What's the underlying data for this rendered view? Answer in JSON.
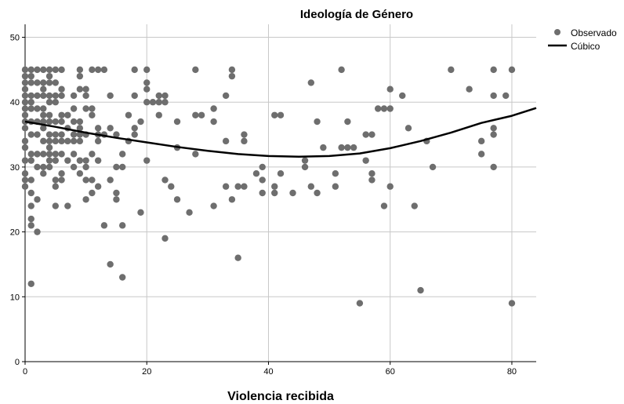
{
  "chart_data": {
    "type": "scatter",
    "title": "Ideología de Género",
    "xlabel": "Violencia recibida",
    "ylabel": "",
    "xlim": [
      0,
      84
    ],
    "ylim": [
      0,
      52
    ],
    "xticks": [
      0,
      20,
      40,
      60,
      80
    ],
    "yticks": [
      0,
      10,
      20,
      30,
      40,
      50
    ],
    "grid": true,
    "legend_position": "top-right",
    "legend": [
      {
        "label": "Observado",
        "kind": "point",
        "color": "#6e6e6e"
      },
      {
        "label": "Cúbico",
        "kind": "line",
        "color": "#000000"
      }
    ],
    "series": [
      {
        "name": "Observado",
        "type": "scatter",
        "color": "#6e6e6e",
        "points": [
          [
            0,
            45
          ],
          [
            0,
            44
          ],
          [
            0,
            43
          ],
          [
            0,
            42
          ],
          [
            0,
            41
          ],
          [
            0,
            40
          ],
          [
            0,
            39
          ],
          [
            0,
            38
          ],
          [
            0,
            37
          ],
          [
            0,
            36
          ],
          [
            0,
            34
          ],
          [
            0,
            33
          ],
          [
            0,
            31
          ],
          [
            0,
            29
          ],
          [
            0,
            28
          ],
          [
            0,
            27
          ],
          [
            1,
            45
          ],
          [
            1,
            44
          ],
          [
            1,
            43
          ],
          [
            1,
            41
          ],
          [
            1,
            40
          ],
          [
            1,
            39
          ],
          [
            1,
            37
          ],
          [
            1,
            35
          ],
          [
            1,
            32
          ],
          [
            1,
            31
          ],
          [
            1,
            28
          ],
          [
            1,
            26
          ],
          [
            1,
            24
          ],
          [
            1,
            22
          ],
          [
            1,
            21
          ],
          [
            1,
            12
          ],
          [
            2,
            45
          ],
          [
            2,
            43
          ],
          [
            2,
            41
          ],
          [
            2,
            39
          ],
          [
            2,
            37
          ],
          [
            2,
            35
          ],
          [
            2,
            32
          ],
          [
            2,
            30
          ],
          [
            2,
            25
          ],
          [
            2,
            20
          ],
          [
            3,
            45
          ],
          [
            3,
            43
          ],
          [
            3,
            42
          ],
          [
            3,
            41
          ],
          [
            3,
            39
          ],
          [
            3,
            38
          ],
          [
            3,
            37
          ],
          [
            3,
            36
          ],
          [
            3,
            34
          ],
          [
            3,
            32
          ],
          [
            3,
            30
          ],
          [
            3,
            29
          ],
          [
            4,
            45
          ],
          [
            4,
            44
          ],
          [
            4,
            43
          ],
          [
            4,
            41
          ],
          [
            4,
            40
          ],
          [
            4,
            38
          ],
          [
            4,
            37
          ],
          [
            4,
            35
          ],
          [
            4,
            34
          ],
          [
            4,
            33
          ],
          [
            4,
            32
          ],
          [
            4,
            31
          ],
          [
            4,
            30
          ],
          [
            5,
            45
          ],
          [
            5,
            43
          ],
          [
            5,
            41
          ],
          [
            5,
            40
          ],
          [
            5,
            37
          ],
          [
            5,
            35
          ],
          [
            5,
            34
          ],
          [
            5,
            32
          ],
          [
            5,
            31
          ],
          [
            5,
            28
          ],
          [
            5,
            27
          ],
          [
            5,
            24
          ],
          [
            6,
            45
          ],
          [
            6,
            42
          ],
          [
            6,
            41
          ],
          [
            6,
            38
          ],
          [
            6,
            37
          ],
          [
            6,
            35
          ],
          [
            6,
            34
          ],
          [
            6,
            32
          ],
          [
            6,
            29
          ],
          [
            6,
            28
          ],
          [
            7,
            38
          ],
          [
            7,
            36
          ],
          [
            7,
            34
          ],
          [
            7,
            31
          ],
          [
            7,
            24
          ],
          [
            8,
            41
          ],
          [
            8,
            39
          ],
          [
            8,
            37
          ],
          [
            8,
            35
          ],
          [
            8,
            34
          ],
          [
            8,
            32
          ],
          [
            8,
            30
          ],
          [
            9,
            45
          ],
          [
            9,
            44
          ],
          [
            9,
            42
          ],
          [
            9,
            37
          ],
          [
            9,
            36
          ],
          [
            9,
            35
          ],
          [
            9,
            34
          ],
          [
            9,
            31
          ],
          [
            9,
            29
          ],
          [
            10,
            42
          ],
          [
            10,
            41
          ],
          [
            10,
            39
          ],
          [
            10,
            35
          ],
          [
            10,
            31
          ],
          [
            10,
            30
          ],
          [
            10,
            28
          ],
          [
            10,
            25
          ],
          [
            11,
            45
          ],
          [
            11,
            39
          ],
          [
            11,
            38
          ],
          [
            11,
            32
          ],
          [
            11,
            28
          ],
          [
            11,
            26
          ],
          [
            12,
            45
          ],
          [
            12,
            36
          ],
          [
            12,
            35
          ],
          [
            12,
            34
          ],
          [
            12,
            31
          ],
          [
            12,
            27
          ],
          [
            13,
            45
          ],
          [
            13,
            35
          ],
          [
            13,
            21
          ],
          [
            14,
            41
          ],
          [
            14,
            36
          ],
          [
            14,
            28
          ],
          [
            14,
            15
          ],
          [
            15,
            35
          ],
          [
            15,
            30
          ],
          [
            15,
            26
          ],
          [
            15,
            25
          ],
          [
            16,
            32
          ],
          [
            16,
            30
          ],
          [
            16,
            21
          ],
          [
            16,
            13
          ],
          [
            17,
            38
          ],
          [
            17,
            34
          ],
          [
            18,
            45
          ],
          [
            18,
            41
          ],
          [
            18,
            36
          ],
          [
            18,
            35
          ],
          [
            19,
            37
          ],
          [
            19,
            23
          ],
          [
            20,
            45
          ],
          [
            20,
            43
          ],
          [
            20,
            42
          ],
          [
            20,
            40
          ],
          [
            20,
            31
          ],
          [
            21,
            40
          ],
          [
            22,
            41
          ],
          [
            22,
            40
          ],
          [
            22,
            38
          ],
          [
            23,
            41
          ],
          [
            23,
            40
          ],
          [
            23,
            28
          ],
          [
            23,
            19
          ],
          [
            24,
            27
          ],
          [
            25,
            37
          ],
          [
            25,
            33
          ],
          [
            25,
            25
          ],
          [
            27,
            23
          ],
          [
            28,
            45
          ],
          [
            28,
            38
          ],
          [
            28,
            32
          ],
          [
            29,
            38
          ],
          [
            31,
            39
          ],
          [
            31,
            37
          ],
          [
            31,
            24
          ],
          [
            33,
            41
          ],
          [
            33,
            34
          ],
          [
            33,
            27
          ],
          [
            34,
            45
          ],
          [
            34,
            44
          ],
          [
            34,
            25
          ],
          [
            35,
            27
          ],
          [
            35,
            16
          ],
          [
            36,
            35
          ],
          [
            36,
            34
          ],
          [
            36,
            27
          ],
          [
            38,
            29
          ],
          [
            39,
            30
          ],
          [
            39,
            28
          ],
          [
            39,
            26
          ],
          [
            41,
            38
          ],
          [
            41,
            27
          ],
          [
            41,
            26
          ],
          [
            42,
            38
          ],
          [
            42,
            29
          ],
          [
            44,
            26
          ],
          [
            46,
            31
          ],
          [
            46,
            30
          ],
          [
            47,
            43
          ],
          [
            47,
            27
          ],
          [
            48,
            37
          ],
          [
            48,
            26
          ],
          [
            49,
            33
          ],
          [
            51,
            29
          ],
          [
            51,
            27
          ],
          [
            52,
            45
          ],
          [
            52,
            33
          ],
          [
            53,
            37
          ],
          [
            53,
            33
          ],
          [
            54,
            33
          ],
          [
            55,
            9
          ],
          [
            56,
            35
          ],
          [
            56,
            31
          ],
          [
            57,
            35
          ],
          [
            57,
            29
          ],
          [
            57,
            28
          ],
          [
            58,
            39
          ],
          [
            59,
            39
          ],
          [
            59,
            24
          ],
          [
            60,
            42
          ],
          [
            60,
            39
          ],
          [
            60,
            27
          ],
          [
            62,
            41
          ],
          [
            63,
            36
          ],
          [
            64,
            24
          ],
          [
            65,
            11
          ],
          [
            66,
            34
          ],
          [
            67,
            30
          ],
          [
            70,
            45
          ],
          [
            73,
            42
          ],
          [
            75,
            34
          ],
          [
            75,
            32
          ],
          [
            77,
            45
          ],
          [
            77,
            41
          ],
          [
            77,
            36
          ],
          [
            77,
            35
          ],
          [
            77,
            30
          ],
          [
            79,
            41
          ],
          [
            80,
            45
          ],
          [
            80,
            9
          ]
        ]
      },
      {
        "name": "Cúbico",
        "type": "line",
        "color": "#000000",
        "points": [
          [
            0,
            37.0
          ],
          [
            5,
            36.2
          ],
          [
            10,
            35.3
          ],
          [
            15,
            34.5
          ],
          [
            20,
            33.8
          ],
          [
            25,
            33.1
          ],
          [
            30,
            32.5
          ],
          [
            35,
            32.0
          ],
          [
            40,
            31.7
          ],
          [
            45,
            31.6
          ],
          [
            50,
            31.7
          ],
          [
            55,
            32.1
          ],
          [
            60,
            32.9
          ],
          [
            65,
            34.0
          ],
          [
            70,
            35.3
          ],
          [
            75,
            36.8
          ],
          [
            80,
            37.9
          ],
          [
            84,
            39.1
          ]
        ]
      }
    ]
  }
}
